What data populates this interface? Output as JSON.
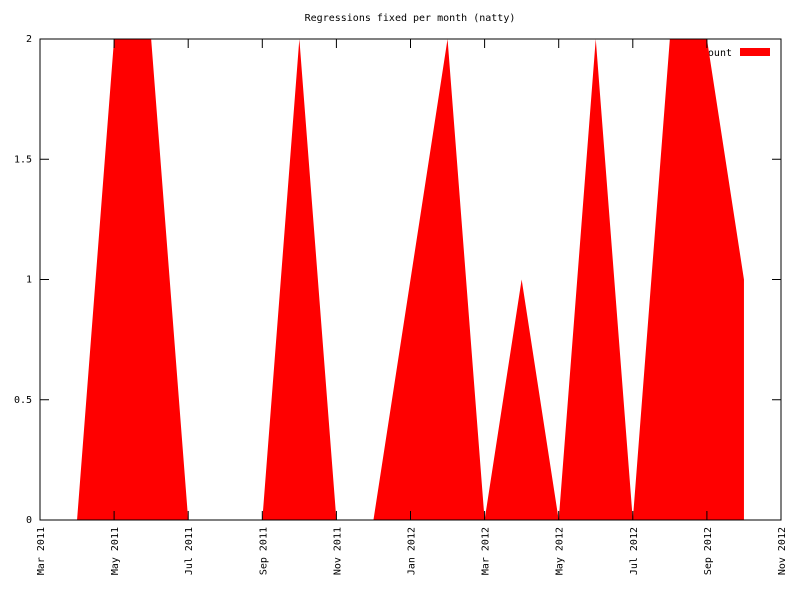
{
  "chart_data": {
    "type": "area",
    "title": "Regressions fixed per month (natty)",
    "x": [
      "2011-04",
      "2011-05",
      "2011-06",
      "2011-07",
      "2011-08",
      "2011-09",
      "2011-10",
      "2011-11",
      "2011-12",
      "2012-01",
      "2012-02",
      "2012-03",
      "2012-04",
      "2012-05",
      "2012-06",
      "2012-07",
      "2012-08",
      "2012-09",
      "2012-10"
    ],
    "series": [
      {
        "name": "Count",
        "color": "#ff0000",
        "values": [
          0,
          2,
          2,
          0,
          0,
          0,
          2,
          0,
          0,
          1,
          2,
          0,
          1,
          0,
          2,
          0,
          2,
          2,
          1
        ]
      }
    ],
    "xlim": [
      "2011-03",
      "2012-11"
    ],
    "xticks": [
      {
        "value": "2011-03",
        "label": "Mar 2011"
      },
      {
        "value": "2011-05",
        "label": "May 2011"
      },
      {
        "value": "2011-07",
        "label": "Jul 2011"
      },
      {
        "value": "2011-09",
        "label": "Sep 2011"
      },
      {
        "value": "2011-11",
        "label": "Nov 2011"
      },
      {
        "value": "2012-01",
        "label": "Jan 2012"
      },
      {
        "value": "2012-03",
        "label": "Mar 2012"
      },
      {
        "value": "2012-05",
        "label": "May 2012"
      },
      {
        "value": "2012-07",
        "label": "Jul 2012"
      },
      {
        "value": "2012-09",
        "label": "Sep 2012"
      },
      {
        "value": "2012-11",
        "label": "Nov 2012"
      }
    ],
    "ylim": [
      0,
      2
    ],
    "yticks": [
      0,
      0.5,
      1,
      1.5,
      2
    ],
    "legend": "top right"
  }
}
